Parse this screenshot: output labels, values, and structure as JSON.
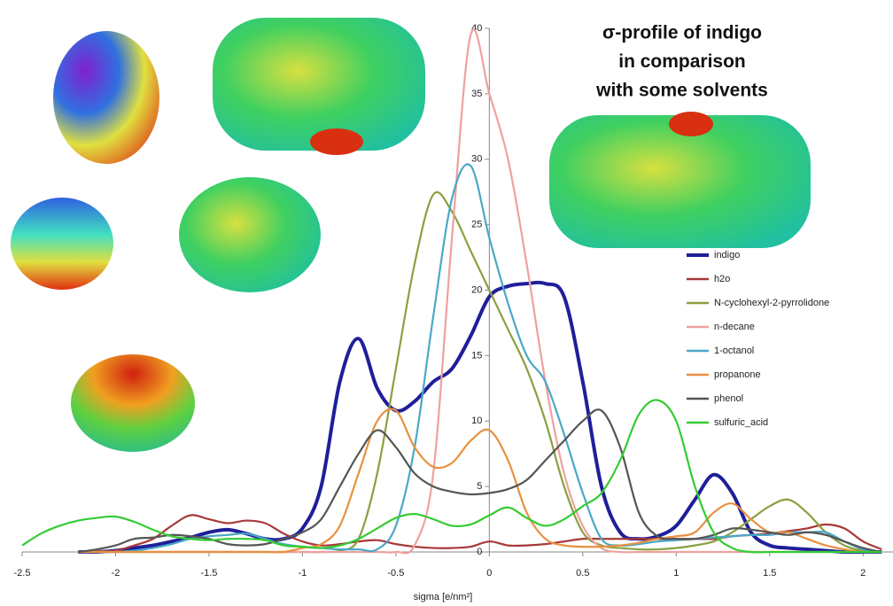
{
  "chart_data": {
    "type": "line",
    "title_lines": [
      "σ-profile of indigo",
      "in comparison",
      "with some solvents"
    ],
    "xlabel": "sigma [e/nm²]",
    "x": [
      -2.5,
      -2.4,
      -2.3,
      -2.2,
      -2.1,
      -2.0,
      -1.9,
      -1.8,
      -1.7,
      -1.6,
      -1.5,
      -1.4,
      -1.3,
      -1.2,
      -1.1,
      -1.0,
      -0.9,
      -0.8,
      -0.7,
      -0.6,
      -0.5,
      -0.4,
      -0.3,
      -0.2,
      -0.1,
      0,
      0.1,
      0.2,
      0.3,
      0.4,
      0.5,
      0.6,
      0.7,
      0.8,
      0.9,
      1.0,
      1.1,
      1.2,
      1.3,
      1.4,
      1.5,
      1.6,
      1.7,
      1.8,
      1.9,
      2.0,
      2.1
    ],
    "xlim": [
      -2.5,
      2.16
    ],
    "ylim": [
      0,
      40
    ],
    "xticks": [
      -2.5,
      -2,
      -1.5,
      -1,
      -0.5,
      0,
      0.5,
      1,
      1.5,
      2
    ],
    "yticks": [
      0,
      5,
      10,
      15,
      20,
      25,
      30,
      35,
      40
    ],
    "series": [
      {
        "name": "indigo",
        "color": "#1f1f9a",
        "values": [
          null,
          null,
          null,
          0,
          0,
          0.1,
          0.3,
          0.5,
          0.8,
          1.1,
          1.5,
          1.7,
          1.4,
          1.0,
          1.0,
          1.8,
          5,
          13,
          16.3,
          12.5,
          10.8,
          11.5,
          13,
          14,
          16.5,
          19.5,
          20.3,
          20.5,
          20.5,
          19.5,
          13,
          5,
          1.5,
          1,
          1.2,
          2,
          4,
          5.9,
          4.5,
          1.5,
          0.5,
          0.3,
          0.2,
          0.1,
          0,
          0,
          0
        ]
      },
      {
        "name": "h2o",
        "color": "#a83838",
        "values": [
          null,
          null,
          null,
          0,
          0.05,
          0.1,
          0.5,
          1,
          2,
          2.8,
          2.5,
          2.2,
          2.4,
          2.2,
          1.4,
          0.8,
          0.5,
          0.6,
          0.8,
          0.9,
          0.6,
          0.4,
          0.3,
          0.3,
          0.4,
          0.8,
          0.5,
          0.5,
          0.6,
          0.8,
          1,
          1,
          1,
          1,
          1,
          1,
          1,
          1,
          1.2,
          1.3,
          1.4,
          1.6,
          1.8,
          2.1,
          1.8,
          0.8,
          0.2
        ]
      },
      {
        "name": "N-cyclohexyl-2-pyrrolidone",
        "color": "#8aa040",
        "values": [
          null,
          null,
          null,
          0,
          0,
          0,
          0,
          0,
          0,
          0,
          0,
          0,
          0,
          0,
          0,
          0,
          0,
          0.1,
          1,
          6,
          14,
          22,
          27.3,
          26,
          23,
          20,
          17,
          14,
          10,
          5,
          1.5,
          0.5,
          0.3,
          0.2,
          0.2,
          0.3,
          0.5,
          0.8,
          1.5,
          2.5,
          3.5,
          4,
          3,
          1.5,
          0.5,
          0.1,
          0
        ]
      },
      {
        "name": "n-decane",
        "color": "#f0a0a0",
        "values": [
          null,
          null,
          null,
          0,
          0,
          0,
          0,
          0,
          0,
          0,
          0,
          0,
          0,
          0,
          0,
          0,
          0,
          0,
          0,
          0,
          0,
          0.5,
          6,
          24,
          39.5,
          35,
          30,
          22,
          13,
          6,
          2,
          0.3,
          0,
          0,
          0,
          0,
          0,
          0,
          0,
          0,
          0,
          0,
          0,
          0,
          0,
          0,
          0
        ]
      },
      {
        "name": "1-octanol",
        "color": "#4aa8c8",
        "values": [
          null,
          null,
          null,
          0,
          0,
          0,
          0.1,
          0.3,
          0.6,
          1,
          1.2,
          1.3,
          1.4,
          1,
          0.6,
          0.4,
          0.3,
          0.2,
          0.2,
          0.2,
          2,
          8,
          18,
          27,
          29.5,
          24,
          19,
          15,
          13,
          9,
          4.5,
          1,
          0.5,
          0.6,
          0.8,
          0.9,
          1,
          1.1,
          1.2,
          1.3,
          1.3,
          1.5,
          1.5,
          1.5,
          0.8,
          0.2,
          0
        ]
      },
      {
        "name": "propanone",
        "color": "#e89040",
        "values": [
          null,
          null,
          null,
          0,
          0,
          0,
          0,
          0,
          0,
          0,
          0,
          0,
          0,
          0,
          0,
          0.3,
          0.6,
          2,
          6,
          10,
          10.8,
          8,
          6.5,
          6.8,
          8.5,
          9.3,
          7,
          3,
          1,
          0.5,
          0.4,
          0.4,
          0.5,
          0.7,
          1,
          1.2,
          1.5,
          3,
          3.7,
          2.5,
          1.5,
          1.5,
          1,
          0.5,
          0.2,
          0,
          0
        ]
      },
      {
        "name": "phenol",
        "color": "#555555",
        "values": [
          null,
          null,
          null,
          0,
          0.2,
          0.5,
          1,
          1.1,
          1.3,
          1.2,
          1,
          0.6,
          0.5,
          0.6,
          1,
          1.5,
          2.5,
          5,
          7.5,
          9.3,
          8,
          6,
          5,
          4.6,
          4.4,
          4.5,
          4.8,
          5.5,
          7,
          8.5,
          10,
          10.8,
          8,
          3,
          1.2,
          1,
          1,
          1.3,
          1.8,
          1.7,
          1.5,
          1.3,
          1.5,
          1.3,
          0.8,
          0.3,
          0
        ]
      },
      {
        "name": "sulfuric_acid",
        "color": "#33cc33",
        "values": [
          0.5,
          1.4,
          2,
          2.4,
          2.6,
          2.7,
          2.3,
          1.7,
          1.2,
          1,
          0.9,
          1,
          1,
          0.9,
          0.5,
          0.4,
          0.3,
          0.5,
          1,
          1.8,
          2.6,
          2.9,
          2.5,
          2,
          2.1,
          2.8,
          3.4,
          2.6,
          2,
          2.5,
          3.5,
          4.5,
          7,
          10.5,
          11.6,
          10,
          5,
          1.5,
          0.3,
          0,
          0,
          0,
          0,
          0,
          0,
          0,
          0
        ]
      }
    ]
  }
}
